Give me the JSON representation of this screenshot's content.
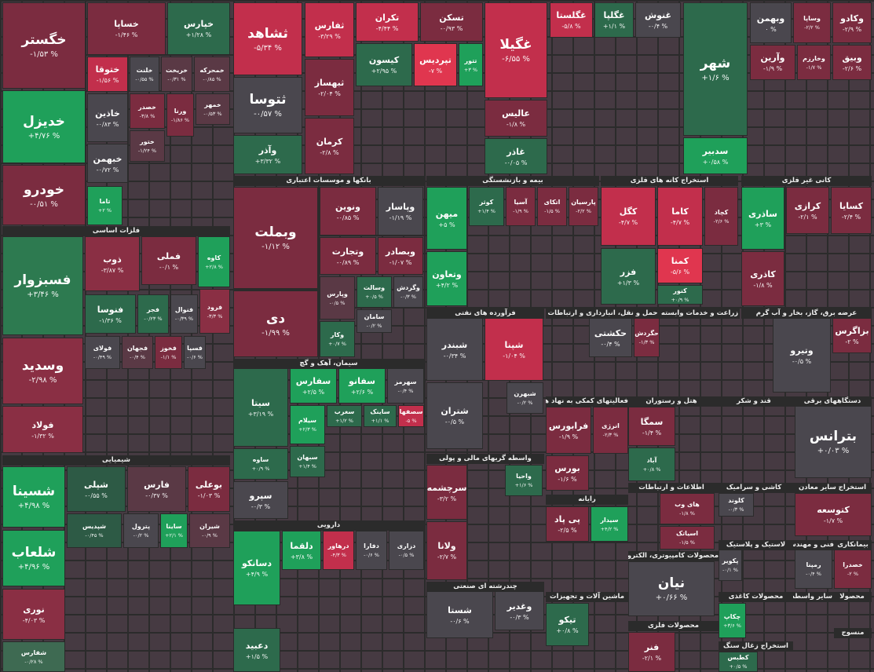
{
  "sectors": [
    {
      "title": "فلزات اساسی"
    },
    {
      "title": "شیمیایی"
    },
    {
      "title": "بانکها و موسسات اعتباری"
    },
    {
      "title": "سیمان، آهک و گچ"
    },
    {
      "title": "دارویی"
    },
    {
      "title": "بیمه و بازنشستگی"
    },
    {
      "title": "استخراج کانه های فلزی"
    },
    {
      "title": "کانی غیر فلزی"
    },
    {
      "title": "فرآورده های نفتی"
    },
    {
      "title": "حمل و نقل، انبارداری و ارتباطات"
    },
    {
      "title": "زراعت و خدمات وابسته"
    },
    {
      "title": "عرضه برق، گاز، بخار و آب گرم"
    },
    {
      "title": "فعالیتهای کمکی به نهاد های مالی"
    },
    {
      "title": "هتل و رستوران"
    },
    {
      "title": "قند و شکر"
    },
    {
      "title": "دستگاههای برقی"
    },
    {
      "title": "واسطه گریهای مالی و پولی"
    },
    {
      "title": "اطلاعات و ارتباطات"
    },
    {
      "title": "کاشی و سرامیک"
    },
    {
      "title": "استخراج سایر معادن"
    },
    {
      "title": "رایانه"
    },
    {
      "title": "لاستیک و پلاستیک"
    },
    {
      "title": "فنی و مهندسی"
    },
    {
      "title": "بیمانکاری"
    },
    {
      "title": "محصولات کامپیوتری، الکترونیکی و نوری"
    },
    {
      "title": "چندرشته ای صنعتی"
    },
    {
      "title": "ماشین آلات و تجهیزات"
    },
    {
      "title": "محصولات فلزی"
    },
    {
      "title": "محصولات کاغذی"
    },
    {
      "title": "سایر واسطه"
    },
    {
      "title": "محصولا"
    },
    {
      "title": "استخراج زغال سنگ"
    },
    {
      "title": "منسوج"
    }
  ],
  "tiles": [
    {
      "name": "خگستر",
      "change": "-۱/۵۳ %",
      "color": "#7b2c40"
    },
    {
      "name": "خدیزل",
      "change": "+۴/۷۶ %",
      "color": "#1fa05a"
    },
    {
      "name": "خودرو",
      "change": "-۰/۵۱ %",
      "color": "#7b2c40"
    },
    {
      "name": "خساپا",
      "change": "-۱/۴۶ %",
      "color": "#7b2c40"
    },
    {
      "name": "خپارس",
      "change": "+۱/۲۸ %",
      "color": "#2d6a4c"
    },
    {
      "name": "ختوقا",
      "change": "-۱/۵۶ %",
      "color": "#c22f4c"
    },
    {
      "name": "خلنت",
      "change": "-۰/۵۵ %",
      "color": "#4a474e"
    },
    {
      "name": "خریخت",
      "change": "-۰/۳۱ %",
      "color": "#5a3945"
    },
    {
      "name": "خمحرکه",
      "change": "-۰/۸۵ %",
      "color": "#5a3945"
    },
    {
      "name": "خاذین",
      "change": "-۰/۸۳ %",
      "color": "#4a474e"
    },
    {
      "name": "خصدر",
      "change": "-۳/۸ %",
      "color": "#7b2c40"
    },
    {
      "name": "ورنا",
      "change": "-۱/۸۶ %",
      "color": "#7b2c40"
    },
    {
      "name": "خمهر",
      "change": "-۰/۵۳ %",
      "color": "#5a3945"
    },
    {
      "name": "خبهمن",
      "change": "-۰/۷۲ %",
      "color": "#4a474e"
    },
    {
      "name": "ختور",
      "change": "-۱/۲۴ %",
      "color": "#5a3945"
    },
    {
      "name": "تاما",
      "change": "+۲ %",
      "color": "#1fa05a"
    },
    {
      "name": "فسبزوار",
      "change": "+۳/۴۶ %",
      "color": "#2d7a50"
    },
    {
      "name": "وسدید",
      "change": "-۲/۹۸ %",
      "color": "#8a2f44"
    },
    {
      "name": "فولاد",
      "change": "-۱/۳۲ %",
      "color": "#8a2f44"
    },
    {
      "name": "ذوب",
      "change": "-۳/۸۷ %",
      "color": "#8a2f44"
    },
    {
      "name": "فملی",
      "change": "-۰/۱ %",
      "color": "#7b2c40"
    },
    {
      "name": "کاوه",
      "change": "+۲/۸ %",
      "color": "#1fa05a"
    },
    {
      "name": "فنوسا",
      "change": "-۱/۳۶ %",
      "color": "#2d6a4c"
    },
    {
      "name": "فجر",
      "change": "-۰/۲۳ %",
      "color": "#2d6a4c"
    },
    {
      "name": "فنوال",
      "change": "-۰/۳۹ %",
      "color": "#4a474e"
    },
    {
      "name": "فرود",
      "change": "-۳/۳ %",
      "color": "#8a2f44"
    },
    {
      "name": "فولای",
      "change": "-۰/۴۹ %",
      "color": "#4a474e"
    },
    {
      "name": "فجهان",
      "change": "-۰/۴ %",
      "color": "#5a3945"
    },
    {
      "name": "فخوز",
      "change": "-۱/۱ %",
      "color": "#7b2c40"
    },
    {
      "name": "فسپا",
      "change": "-۰/۶ %",
      "color": "#4a474e"
    },
    {
      "name": "شسینا",
      "change": "+۴/۹۸ %",
      "color": "#1fa05a"
    },
    {
      "name": "شلعاب",
      "change": "+۴/۹۶ %",
      "color": "#1fa05a"
    },
    {
      "name": "نوری",
      "change": "-۴/۰۳ %",
      "color": "#8a2f44"
    },
    {
      "name": "شفارس",
      "change": "-۰/۲۸ %",
      "color": "#3e6a52"
    },
    {
      "name": "شپلی",
      "change": "-۰/۵۵ %",
      "color": "#2d5a45"
    },
    {
      "name": "فارس",
      "change": "-۰/۳۷ %",
      "color": "#5a3945"
    },
    {
      "name": "بوعلی",
      "change": "-۱/۰۳ %",
      "color": "#7b2c40"
    },
    {
      "name": "شپدیس",
      "change": "-۰/۴۵ %",
      "color": "#2d5a45"
    },
    {
      "name": "پترول",
      "change": "-۰/۲ %",
      "color": "#4a474e"
    },
    {
      "name": "ساینا",
      "change": "+۲/۱ %",
      "color": "#1fa05a"
    },
    {
      "name": "شیران",
      "change": "-۰/۹ %",
      "color": "#5a3945"
    },
    {
      "name": "ثشاهد",
      "change": "-۵/۳۴ %",
      "color": "#c22f4c"
    },
    {
      "name": "ثفارس",
      "change": "-۳/۲۹ %",
      "color": "#c22f4c"
    },
    {
      "name": "ثتوسا",
      "change": "-۰/۵۷ %",
      "color": "#4a474e"
    },
    {
      "name": "ثبهساز",
      "change": "-۲/۰۴ %",
      "color": "#7b2c40"
    },
    {
      "name": "وآذر",
      "change": "+۳/۳۲ %",
      "color": "#2d6a4c"
    },
    {
      "name": "کرمان",
      "change": "-۲/۸ %",
      "color": "#7b2c40"
    },
    {
      "name": "تکران",
      "change": "-۴/۴۴ %",
      "color": "#c22f4c"
    },
    {
      "name": "تسکن",
      "change": "-۰/۹۳ %",
      "color": "#7b2c40"
    },
    {
      "name": "کیسون",
      "change": "+۲/۹۵ %",
      "color": "#2d6a4c"
    },
    {
      "name": "تپردیس",
      "change": "-۷ %",
      "color": "#e0364f"
    },
    {
      "name": "تتور",
      "change": "+۳ %",
      "color": "#1fa05a"
    },
    {
      "name": "غگیلا",
      "change": "-۶/۵۵ %",
      "color": "#c22f4c"
    },
    {
      "name": "عالیس",
      "change": "-۱/۸ %",
      "color": "#7b2c40"
    },
    {
      "name": "غاذر",
      "change": "-۰/۰۵ %",
      "color": "#2d6a4c"
    },
    {
      "name": "غگلستا",
      "change": "-۵/۸ %",
      "color": "#c22f4c"
    },
    {
      "name": "غگلپا",
      "change": "+۱/۱ %",
      "color": "#2d6a4c"
    },
    {
      "name": "غنوش",
      "change": "-۰/۴ %",
      "color": "#4a474e"
    },
    {
      "name": "شهر",
      "change": "+۱/۶ %",
      "color": "#2d6a4c"
    },
    {
      "name": "سدبیر",
      "change": "+۰/۵۸ %",
      "color": "#1fa05a"
    },
    {
      "name": "وبهمن",
      "change": "۰ %",
      "color": "#4a474e"
    },
    {
      "name": "وساپا",
      "change": "-۲/۲ %",
      "color": "#7b2c40"
    },
    {
      "name": "وکادو",
      "change": "-۲/۹ %",
      "color": "#7b2c40"
    },
    {
      "name": "وآرین",
      "change": "-۱/۹ %",
      "color": "#7b2c40"
    },
    {
      "name": "وخارزم",
      "change": "-۱/۷ %",
      "color": "#7b2c40"
    },
    {
      "name": "وبیق",
      "change": "-۲/۶ %",
      "color": "#7b2c40"
    },
    {
      "name": "وبملت",
      "change": "-۱/۱۲ %",
      "color": "#7b2c40"
    },
    {
      "name": "دی",
      "change": "-۱/۹۹ %",
      "color": "#7b2c40"
    },
    {
      "name": "ونوین",
      "change": "-۰/۸۵ %",
      "color": "#7b2c40"
    },
    {
      "name": "وپاسار",
      "change": "-۱/۱۹ %",
      "color": "#4a474e"
    },
    {
      "name": "وتجارت",
      "change": "-۰/۸۹ %",
      "color": "#7b2c40"
    },
    {
      "name": "وبصادر",
      "change": "-۱/۰۷ %",
      "color": "#7b2c40"
    },
    {
      "name": "وپارس",
      "change": "-۰/۵ %",
      "color": "#5a3945"
    },
    {
      "name": "وکار",
      "change": "+۰/۷ %",
      "color": "#2d6a4c"
    },
    {
      "name": "وسالت",
      "change": "+۰/۵ %",
      "color": "#2d6a4c"
    },
    {
      "name": "وگردش",
      "change": "-۰/۳ %",
      "color": "#4a474e"
    },
    {
      "name": "سامان",
      "change": "-۰/۲ %",
      "color": "#4a474e"
    },
    {
      "name": "سیتا",
      "change": "+۳/۱۹ %",
      "color": "#2d6a4c"
    },
    {
      "name": "ساوه",
      "change": "+۰/۹ %",
      "color": "#2d6a4c"
    },
    {
      "name": "سپرو",
      "change": "-۰/۳ %",
      "color": "#4a474e"
    },
    {
      "name": "سفارس",
      "change": "+۲/۵ %",
      "color": "#1fa05a"
    },
    {
      "name": "سفانو",
      "change": "+۲/۶ %",
      "color": "#1fa05a"
    },
    {
      "name": "سهرمز",
      "change": "-۰/۴ %",
      "color": "#4a474e"
    },
    {
      "name": "سیلام",
      "change": "+۲/۳ %",
      "color": "#1fa05a"
    },
    {
      "name": "سغرب",
      "change": "+۱/۲ %",
      "color": "#2d6a4c"
    },
    {
      "name": "ساینک",
      "change": "+۱/۱ %",
      "color": "#2d6a4c"
    },
    {
      "name": "سصفها",
      "change": "-۵ %",
      "color": "#c22f4c"
    },
    {
      "name": "سبهان",
      "change": "+۱/۴ %",
      "color": "#2d6a4c"
    },
    {
      "name": "دسانکو",
      "change": "+۴/۹ %",
      "color": "#1fa05a"
    },
    {
      "name": "دعبید",
      "change": "+۱/۵ %",
      "color": "#2d6a4c"
    },
    {
      "name": "دلقما",
      "change": "+۳/۸ %",
      "color": "#1fa05a"
    },
    {
      "name": "درهاور",
      "change": "-۴/۳ %",
      "color": "#c22f4c"
    },
    {
      "name": "دفارا",
      "change": "-۰/۶ %",
      "color": "#4a474e"
    },
    {
      "name": "دزاری",
      "change": "-۰/۵ %",
      "color": "#4a474e"
    },
    {
      "name": "میهن",
      "change": "+۵ %",
      "color": "#1fa05a"
    },
    {
      "name": "وتعاون",
      "change": "+۴/۲ %",
      "color": "#1fa05a"
    },
    {
      "name": "کوثر",
      "change": "+۱/۴ %",
      "color": "#2d6a4c"
    },
    {
      "name": "آسیا",
      "change": "-۱/۹ %",
      "color": "#7b2c40"
    },
    {
      "name": "اتکای",
      "change": "-۱/۵ %",
      "color": "#7b2c40"
    },
    {
      "name": "پارسیان",
      "change": "-۲/۲ %",
      "color": "#7b2c40"
    },
    {
      "name": "کگل",
      "change": "-۴/۷ %",
      "color": "#c22f4c"
    },
    {
      "name": "فزر",
      "change": "+۱/۳ %",
      "color": "#2d6a4c"
    },
    {
      "name": "کاما",
      "change": "-۴/۷ %",
      "color": "#c22f4c"
    },
    {
      "name": "کچاد",
      "change": "-۲/۶ %",
      "color": "#7b2c40"
    },
    {
      "name": "کمنا",
      "change": "-۵/۶ %",
      "color": "#e0364f"
    },
    {
      "name": "کنور",
      "change": "+۰/۹ %",
      "color": "#2d6a4c"
    },
    {
      "name": "ساذری",
      "change": "+۳ %",
      "color": "#1fa05a"
    },
    {
      "name": "کرازی",
      "change": "-۲/۱ %",
      "color": "#7b2c40"
    },
    {
      "name": "کسایا",
      "change": "-۲/۴ %",
      "color": "#7b2c40"
    },
    {
      "name": "کاذری",
      "change": "-۱/۸ %",
      "color": "#7b2c40"
    },
    {
      "name": "شبندر",
      "change": "-۰/۳۴ %",
      "color": "#4a474e"
    },
    {
      "name": "شپنا",
      "change": "-۱/۰۴ %",
      "color": "#c22f4c"
    },
    {
      "name": "شتران",
      "change": "-۰/۵ %",
      "color": "#4a474e"
    },
    {
      "name": "شبهرن",
      "change": "-۰/۲ %",
      "color": "#4a474e"
    },
    {
      "name": "حکشتی",
      "change": "-۰/۴ %",
      "color": "#4a474e"
    },
    {
      "name": "حگردش",
      "change": "-۱/۳ %",
      "color": "#7b2c40"
    },
    {
      "name": "بزاگرس",
      "change": "-۲ %",
      "color": "#7b2c40"
    },
    {
      "name": "وتیرو",
      "change": "-۰/۵ %",
      "color": "#4a474e"
    },
    {
      "name": "فرابورس",
      "change": "-۱/۹ %",
      "color": "#7b2c40"
    },
    {
      "name": "انرژی",
      "change": "-۲/۳ %",
      "color": "#7b2c40"
    },
    {
      "name": "بورس",
      "change": "-۱/۶ %",
      "color": "#7b2c40"
    },
    {
      "name": "سمگا",
      "change": "-۱/۴ %",
      "color": "#7b2c40"
    },
    {
      "name": "آباد",
      "change": "+۰/۸ %",
      "color": "#2d6a4c"
    },
    {
      "name": "بترانس",
      "change": "+۰/۰۳ %",
      "color": "#4a474e"
    },
    {
      "name": "سرچشمه",
      "change": "-۳/۲ %",
      "color": "#7b2c40"
    },
    {
      "name": "ولانا",
      "change": "-۲/۷ %",
      "color": "#7b2c40"
    },
    {
      "name": "واحیا",
      "change": "+۱/۶ %",
      "color": "#2d6a4c"
    },
    {
      "name": "نیان",
      "change": "+۰/۶۶ %",
      "color": "#4a474e"
    },
    {
      "name": "های وب",
      "change": "-۱/۸ %",
      "color": "#7b2c40"
    },
    {
      "name": "اسیاتک",
      "change": "-۱/۵ %",
      "color": "#7b2c40"
    },
    {
      "name": "سیدار",
      "change": "+۴/۲ %",
      "color": "#1fa05a"
    },
    {
      "name": "پی پاد",
      "change": "-۲/۵ %",
      "color": "#7b2c40"
    },
    {
      "name": "کلوند",
      "change": "-۰/۳ %",
      "color": "#4a474e"
    },
    {
      "name": "کتوسعه",
      "change": "-۱/۷ %",
      "color": "#7b2c40"
    },
    {
      "name": "پکویر",
      "change": "-۰/۱ %",
      "color": "#4a474e"
    },
    {
      "name": "رمپنا",
      "change": "-۰/۴ %",
      "color": "#4a474e"
    },
    {
      "name": "خصدرا",
      "change": "-۲ %",
      "color": "#7b2c40"
    },
    {
      "name": "تیکو",
      "change": "+۰/۸ %",
      "color": "#2d6a4c"
    },
    {
      "name": "شستا",
      "change": "-۰/۶ %",
      "color": "#4a474e"
    },
    {
      "name": "وغدیر",
      "change": "-۰/۳ %",
      "color": "#4a474e"
    },
    {
      "name": "فنر",
      "change": "-۲/۱ %",
      "color": "#7b2c40"
    },
    {
      "name": "چکاپ",
      "change": "+۳/۶ %",
      "color": "#1fa05a"
    },
    {
      "name": "کطبس",
      "change": "+۰/۵ %",
      "color": "#2d6a4c"
    }
  ]
}
